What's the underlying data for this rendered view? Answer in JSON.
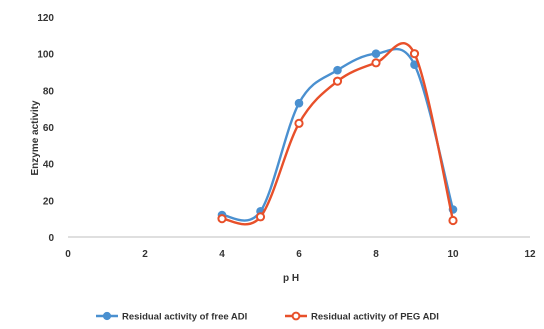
{
  "chart_data": {
    "type": "scatter",
    "title": "",
    "xlabel": "p H",
    "ylabel": "Enzyme activity",
    "xlim": [
      0,
      12
    ],
    "ylim": [
      0,
      120
    ],
    "x_ticks": [
      0,
      2,
      4,
      6,
      8,
      10,
      12
    ],
    "y_ticks": [
      0,
      20,
      40,
      60,
      80,
      100,
      120
    ],
    "grid": false,
    "legend_position": "bottom",
    "series": [
      {
        "name": "Residual activity of free ADI",
        "color": "#4a90d0",
        "marker": "circle",
        "x": [
          4,
          5,
          6,
          7,
          8,
          9,
          10
        ],
        "y": [
          12,
          14,
          73,
          91,
          100,
          94,
          15
        ]
      },
      {
        "name": "Residual activity of PEG ADI",
        "color": "#e8502a",
        "marker": "circle-open",
        "x": [
          4,
          5,
          6,
          7,
          8,
          9,
          10
        ],
        "y": [
          10,
          11,
          62,
          85,
          95,
          100,
          9
        ]
      }
    ]
  }
}
